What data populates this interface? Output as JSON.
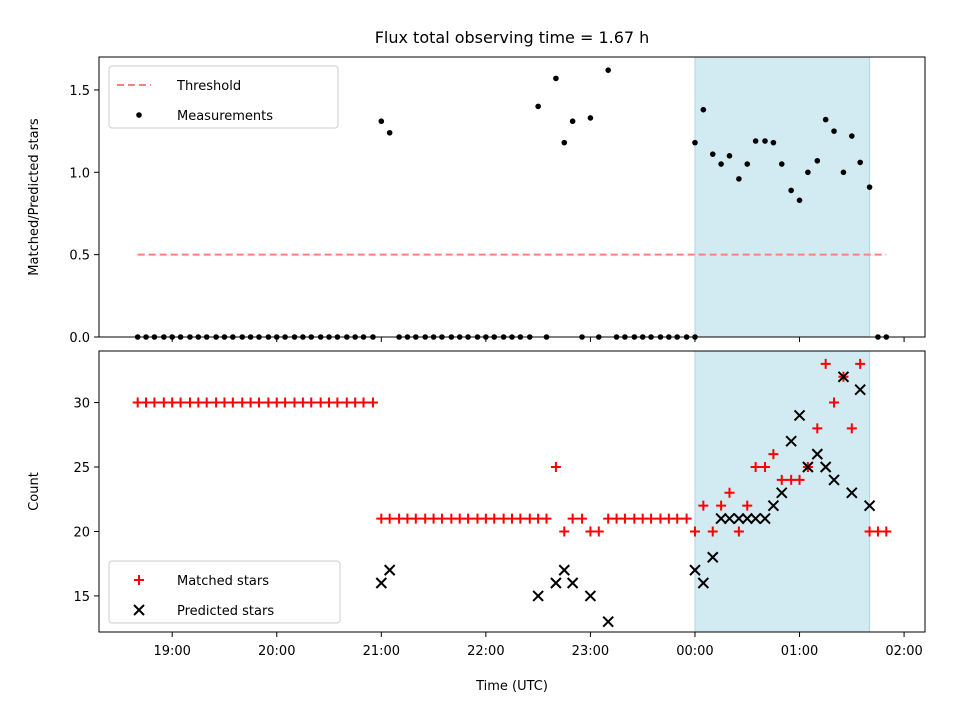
{
  "title": "Flux total observing time = 1.67 h",
  "xlabel": "Time (UTC)",
  "x_tick_labels": [
    "19:00",
    "20:00",
    "21:00",
    "22:00",
    "23:00",
    "00:00",
    "01:00",
    "02:00"
  ],
  "colors": {
    "threshold": "#ff7f7f",
    "measurement": "#000000",
    "matched": "#ff0000",
    "predicted": "#000000",
    "highlight": "#add8e6"
  },
  "chart_data": [
    {
      "type": "scatter",
      "ylabel": "Matched/Predicted stars",
      "ylim": [
        0,
        1.7
      ],
      "y_ticks": [
        0.0,
        0.5,
        1.0,
        1.5
      ],
      "y_tick_labels": [
        "0.0",
        "0.5",
        "1.0",
        "1.5"
      ],
      "x_unit": "hours since 19:00 UTC",
      "xlim": [
        -0.7,
        7.2
      ],
      "highlight_span": [
        5.0,
        6.67
      ],
      "legend": {
        "position": "upper left",
        "entries": [
          "Threshold",
          "Measurements"
        ]
      },
      "series": [
        {
          "name": "Threshold",
          "type": "line",
          "x": [
            -0.33,
            6.83
          ],
          "y": [
            0.5,
            0.5
          ]
        },
        {
          "name": "Measurements",
          "type": "scatter",
          "points": [
            [
              -0.33,
              0
            ],
            [
              -0.25,
              0
            ],
            [
              -0.17,
              0
            ],
            [
              -0.08,
              0
            ],
            [
              0,
              0
            ],
            [
              0.08,
              0
            ],
            [
              0.17,
              0
            ],
            [
              0.25,
              0
            ],
            [
              0.33,
              0
            ],
            [
              0.42,
              0
            ],
            [
              0.5,
              0
            ],
            [
              0.58,
              0
            ],
            [
              0.67,
              0
            ],
            [
              0.75,
              0
            ],
            [
              0.83,
              0
            ],
            [
              0.92,
              0
            ],
            [
              1,
              0
            ],
            [
              1.08,
              0
            ],
            [
              1.17,
              0
            ],
            [
              1.25,
              0
            ],
            [
              1.33,
              0
            ],
            [
              1.42,
              0
            ],
            [
              1.5,
              0
            ],
            [
              1.58,
              0
            ],
            [
              1.67,
              0
            ],
            [
              1.75,
              0
            ],
            [
              1.83,
              0
            ],
            [
              1.92,
              0
            ],
            [
              2,
              1.31
            ],
            [
              2.08,
              1.24
            ],
            [
              2.17,
              0
            ],
            [
              2.25,
              0
            ],
            [
              2.33,
              0
            ],
            [
              2.42,
              0
            ],
            [
              2.5,
              0
            ],
            [
              2.58,
              0
            ],
            [
              2.67,
              0
            ],
            [
              2.75,
              0
            ],
            [
              2.83,
              0
            ],
            [
              2.92,
              0
            ],
            [
              3,
              0
            ],
            [
              3.08,
              0
            ],
            [
              3.17,
              0
            ],
            [
              3.25,
              0
            ],
            [
              3.33,
              0
            ],
            [
              3.42,
              0
            ],
            [
              3.5,
              1.4
            ],
            [
              3.58,
              0
            ],
            [
              3.67,
              1.57
            ],
            [
              3.75,
              1.18
            ],
            [
              3.83,
              1.31
            ],
            [
              3.92,
              0
            ],
            [
              4,
              1.33
            ],
            [
              4.08,
              0
            ],
            [
              4.17,
              1.62
            ],
            [
              4.25,
              0
            ],
            [
              4.33,
              0
            ],
            [
              4.42,
              0
            ],
            [
              4.5,
              0
            ],
            [
              4.58,
              0
            ],
            [
              4.67,
              0
            ],
            [
              4.75,
              0
            ],
            [
              4.83,
              0
            ],
            [
              4.92,
              0
            ],
            [
              5,
              0
            ],
            [
              5,
              1.18
            ],
            [
              5.08,
              1.38
            ],
            [
              5.17,
              1.11
            ],
            [
              5.25,
              1.05
            ],
            [
              5.33,
              1.1
            ],
            [
              5.42,
              0.96
            ],
            [
              5.5,
              1.05
            ],
            [
              5.58,
              1.19
            ],
            [
              5.67,
              1.19
            ],
            [
              5.75,
              1.18
            ],
            [
              5.83,
              1.05
            ],
            [
              5.92,
              0.89
            ],
            [
              6,
              0.83
            ],
            [
              6.08,
              1.0
            ],
            [
              6.17,
              1.07
            ],
            [
              6.25,
              1.32
            ],
            [
              6.33,
              1.25
            ],
            [
              6.42,
              1.0
            ],
            [
              6.5,
              1.22
            ],
            [
              6.58,
              1.06
            ],
            [
              6.67,
              0.91
            ],
            [
              6.75,
              0
            ],
            [
              6.83,
              0
            ]
          ]
        }
      ]
    },
    {
      "type": "scatter",
      "ylabel": "Count",
      "ylim": [
        12.2,
        34.0
      ],
      "y_ticks": [
        15,
        20,
        25,
        30
      ],
      "y_tick_labels": [
        "15",
        "20",
        "25",
        "30"
      ],
      "x_unit": "hours since 19:00 UTC",
      "xlim": [
        -0.7,
        7.2
      ],
      "highlight_span": [
        5.0,
        6.67
      ],
      "legend": {
        "position": "lower left",
        "entries": [
          "Matched stars",
          "Predicted stars"
        ]
      },
      "series": [
        {
          "name": "Matched stars",
          "marker": "+",
          "points": [
            [
              -0.33,
              30
            ],
            [
              -0.25,
              30
            ],
            [
              -0.17,
              30
            ],
            [
              -0.08,
              30
            ],
            [
              0,
              30
            ],
            [
              0.08,
              30
            ],
            [
              0.17,
              30
            ],
            [
              0.25,
              30
            ],
            [
              0.33,
              30
            ],
            [
              0.42,
              30
            ],
            [
              0.5,
              30
            ],
            [
              0.58,
              30
            ],
            [
              0.67,
              30
            ],
            [
              0.75,
              30
            ],
            [
              0.83,
              30
            ],
            [
              0.92,
              30
            ],
            [
              1,
              30
            ],
            [
              1.08,
              30
            ],
            [
              1.17,
              30
            ],
            [
              1.25,
              30
            ],
            [
              1.33,
              30
            ],
            [
              1.42,
              30
            ],
            [
              1.5,
              30
            ],
            [
              1.58,
              30
            ],
            [
              1.67,
              30
            ],
            [
              1.75,
              30
            ],
            [
              1.83,
              30
            ],
            [
              1.92,
              30
            ],
            [
              2,
              21
            ],
            [
              2.08,
              21
            ],
            [
              2.17,
              21
            ],
            [
              2.25,
              21
            ],
            [
              2.33,
              21
            ],
            [
              2.42,
              21
            ],
            [
              2.5,
              21
            ],
            [
              2.58,
              21
            ],
            [
              2.67,
              21
            ],
            [
              2.75,
              21
            ],
            [
              2.83,
              21
            ],
            [
              2.92,
              21
            ],
            [
              3,
              21
            ],
            [
              3.08,
              21
            ],
            [
              3.17,
              21
            ],
            [
              3.25,
              21
            ],
            [
              3.33,
              21
            ],
            [
              3.42,
              21
            ],
            [
              3.5,
              21
            ],
            [
              3.58,
              21
            ],
            [
              3.67,
              25
            ],
            [
              3.75,
              20
            ],
            [
              3.83,
              21
            ],
            [
              3.92,
              21
            ],
            [
              4,
              20
            ],
            [
              4.08,
              20
            ],
            [
              4.17,
              21
            ],
            [
              4.25,
              21
            ],
            [
              4.33,
              21
            ],
            [
              4.42,
              21
            ],
            [
              4.5,
              21
            ],
            [
              4.58,
              21
            ],
            [
              4.67,
              21
            ],
            [
              4.75,
              21
            ],
            [
              4.83,
              21
            ],
            [
              4.92,
              21
            ],
            [
              5,
              20
            ],
            [
              5.08,
              22
            ],
            [
              5.17,
              20
            ],
            [
              5.25,
              22
            ],
            [
              5.33,
              23
            ],
            [
              5.42,
              20
            ],
            [
              5.5,
              22
            ],
            [
              5.58,
              25
            ],
            [
              5.67,
              25
            ],
            [
              5.75,
              26
            ],
            [
              5.83,
              24
            ],
            [
              5.92,
              24
            ],
            [
              6,
              24
            ],
            [
              6.08,
              25
            ],
            [
              6.17,
              28
            ],
            [
              6.25,
              33
            ],
            [
              6.33,
              30
            ],
            [
              6.42,
              32
            ],
            [
              6.5,
              28
            ],
            [
              6.58,
              33
            ],
            [
              6.67,
              20
            ],
            [
              6.75,
              20
            ],
            [
              6.83,
              20
            ]
          ]
        },
        {
          "name": "Predicted stars",
          "marker": "x",
          "points": [
            [
              2,
              16
            ],
            [
              2.08,
              17
            ],
            [
              3.5,
              15
            ],
            [
              3.67,
              16
            ],
            [
              3.75,
              17
            ],
            [
              3.83,
              16
            ],
            [
              4,
              15
            ],
            [
              4.17,
              13
            ],
            [
              5,
              17
            ],
            [
              5.08,
              16
            ],
            [
              5.17,
              18
            ],
            [
              5.25,
              21
            ],
            [
              5.33,
              21
            ],
            [
              5.42,
              21
            ],
            [
              5.5,
              21
            ],
            [
              5.58,
              21
            ],
            [
              5.67,
              21
            ],
            [
              5.75,
              22
            ],
            [
              5.83,
              23
            ],
            [
              5.92,
              27
            ],
            [
              6,
              29
            ],
            [
              6.08,
              25
            ],
            [
              6.17,
              26
            ],
            [
              6.25,
              25
            ],
            [
              6.33,
              24
            ],
            [
              6.42,
              32
            ],
            [
              6.5,
              23
            ],
            [
              6.58,
              31
            ],
            [
              6.67,
              22
            ]
          ]
        }
      ]
    }
  ]
}
